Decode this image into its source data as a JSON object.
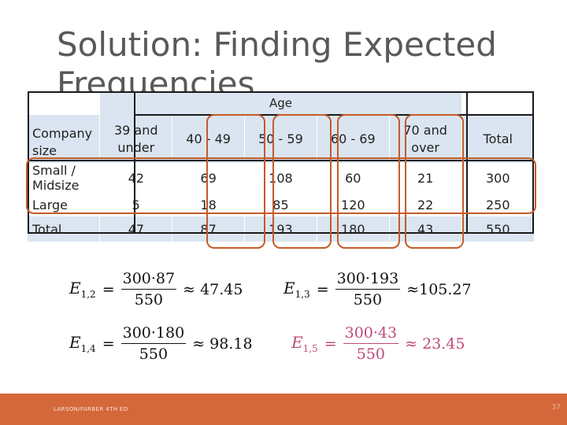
{
  "slide": {
    "title": "Solution: Finding Expected Frequencies",
    "footer": "LARSON/FARBER 4TH ED",
    "page_number": "37"
  },
  "table": {
    "group_header": "Age",
    "row_header": "Company size",
    "columns": [
      {
        "line1": "39 and",
        "line2": "under"
      },
      {
        "line1": "40 - 49",
        "line2": ""
      },
      {
        "line1": "50 - 59",
        "line2": ""
      },
      {
        "line1": "60 - 69",
        "line2": ""
      },
      {
        "line1": "70 and",
        "line2": "over"
      },
      {
        "line1": "Total",
        "line2": ""
      }
    ],
    "rows": [
      {
        "label": "Small / Midsize",
        "values": [
          "42",
          "69",
          "108",
          "60",
          "21",
          "300"
        ]
      },
      {
        "label": "Large",
        "values": [
          "5",
          "18",
          "85",
          "120",
          "22",
          "250"
        ]
      },
      {
        "label": "Total",
        "values": [
          "47",
          "87",
          "193",
          "180",
          "43",
          "550"
        ]
      }
    ]
  },
  "formulas": [
    {
      "lhs": "E",
      "sub": "1,2",
      "numerator": "300·87",
      "denominator": "550",
      "result": "≈ 47.45",
      "highlighted": false
    },
    {
      "lhs": "E",
      "sub": "1,3",
      "numerator": "300·193",
      "denominator": "550",
      "result": "≈105.27",
      "highlighted": false
    },
    {
      "lhs": "E",
      "sub": "1,4",
      "numerator": "300·180",
      "denominator": "550",
      "result": "≈ 98.18",
      "highlighted": false
    },
    {
      "lhs": "E",
      "sub": "1,5",
      "numerator": "300·43",
      "denominator": "550",
      "result": "≈ 23.45",
      "highlighted": true
    }
  ],
  "colors": {
    "highlight": "#c55a28",
    "emphasis_formula": "#c0497a",
    "footer_bar": "#d4683b",
    "table_shade": "#dbe5f1"
  }
}
